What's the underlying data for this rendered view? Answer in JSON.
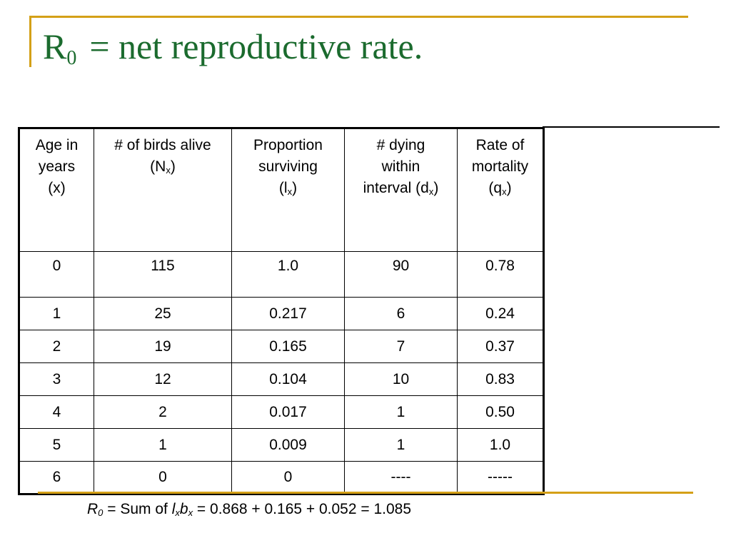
{
  "title": {
    "main": "R",
    "sub": "0",
    "rest": "= net reproductive rate."
  },
  "table": {
    "headers": [
      {
        "lines": [
          "Age in",
          "years",
          "(x)"
        ]
      },
      {
        "lines": [
          "# of birds alive"
        ],
        "prefix": "(N",
        "sub": "x",
        "suffix": ")"
      },
      {
        "lines": [
          "Proportion",
          "surviving"
        ],
        "prefix": "(l",
        "sub": "x",
        "suffix": ")"
      },
      {
        "lines": [
          "# dying",
          "within"
        ],
        "prefix": "interval (d",
        "sub": "x",
        "suffix": ")"
      },
      {
        "lines": [
          "Rate of",
          "mortality"
        ],
        "prefix": "(q",
        "sub": "x",
        "suffix": ")"
      }
    ],
    "rows": [
      [
        "0",
        "115",
        "1.0",
        "90",
        "0.78"
      ],
      [
        "1",
        "25",
        "0.217",
        "6",
        "0.24"
      ],
      [
        "2",
        "19",
        "0.165",
        "7",
        "0.37"
      ],
      [
        "3",
        "12",
        "0.104",
        "10",
        "0.83"
      ],
      [
        "4",
        "2",
        "0.017",
        "1",
        "0.50"
      ],
      [
        "5",
        "1",
        "0.009",
        "1",
        "1.0"
      ],
      [
        "6",
        "0",
        "0",
        "----",
        "-----"
      ]
    ]
  },
  "formula": {
    "r": "R",
    "r_sub": "0",
    "eq1": " = ",
    "sum_text": "Sum of ",
    "l": "l",
    "l_sub": "x",
    "b": "b",
    "b_sub": "x",
    "rhs": " = 0.868 + 0.165 + 0.052 = 1.085"
  },
  "colors": {
    "title": "#1b6b2e",
    "accent_lines": "#d4a017"
  }
}
